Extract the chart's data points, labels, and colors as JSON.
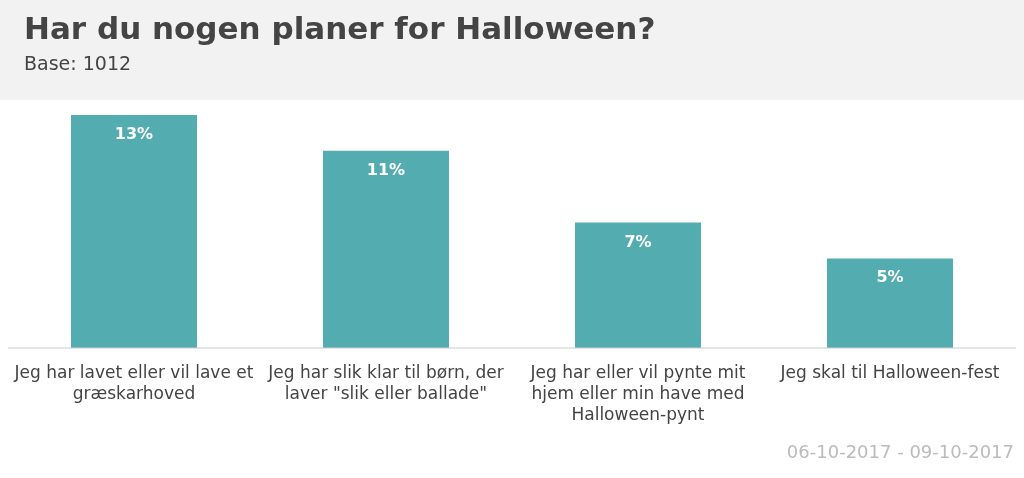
{
  "chart_data": {
    "type": "bar",
    "title": "Har du nogen planer for Halloween?",
    "subtitle": "Base: 1012",
    "categories": [
      "Jeg har lavet eller vil lave et græskarhoved",
      "Jeg har slik klar til børn, der laver \"slik eller ballade\"",
      "Jeg har eller vil pynte mit hjem eller min have med Halloween-pynt",
      "Jeg skal til Halloween-fest"
    ],
    "values": [
      13,
      11,
      7,
      5
    ],
    "value_labels": [
      "13%",
      "11%",
      "7%",
      "5%"
    ],
    "color": "#53acb0",
    "annotations": [
      "06-10-2017 - 09-10-2017"
    ]
  }
}
